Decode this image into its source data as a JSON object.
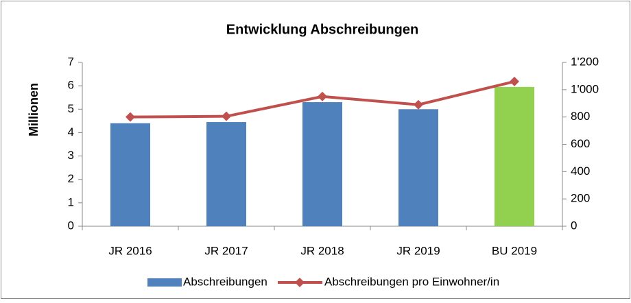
{
  "chart_data": {
    "type": "bar",
    "title": "Entwicklung Abschreibungen",
    "y_label": "Millionen",
    "categories": [
      "JR 2016",
      "JR 2017",
      "JR 2018",
      "JR 2019",
      "BU 2019"
    ],
    "series": [
      {
        "name": "Abschreibungen",
        "type": "bar",
        "color": "#4f81bd",
        "colors": [
          "#4f81bd",
          "#4f81bd",
          "#4f81bd",
          "#4f81bd",
          "#92d050"
        ],
        "values": [
          4.4,
          4.45,
          5.3,
          5.0,
          5.95
        ]
      },
      {
        "name": "Abschreibungen pro Einwohner/in",
        "type": "line",
        "axis": "y2",
        "color": "#c0504d",
        "values": [
          800,
          805,
          950,
          890,
          1060
        ]
      }
    ],
    "ylim": [
      0,
      7
    ],
    "yticks": [
      0,
      1,
      2,
      3,
      4,
      5,
      6,
      7
    ],
    "y2lim": [
      0,
      1200
    ],
    "y2ticks": [
      0,
      200,
      400,
      600,
      800,
      {
        "value": 1000,
        "label": "1'000"
      },
      {
        "value": 1200,
        "label": "1'200"
      }
    ],
    "legend": "bottom"
  }
}
